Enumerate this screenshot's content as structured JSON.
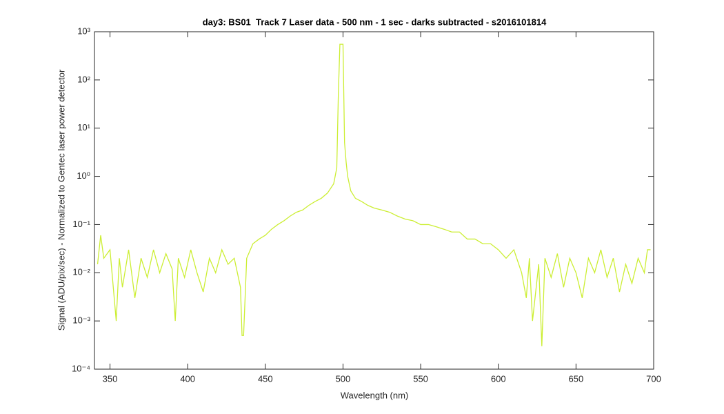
{
  "chart_data": {
    "type": "line",
    "title": "day3: BS01  Track 7 Laser data - 500 nm - 1 sec - darks subtracted - s2016101814",
    "x_label": "Wavelength (nm)",
    "y_label": "Signal (ADU/pix/sec) - Normalized to Gentec laser power detector",
    "y_scale": "log",
    "xlim": [
      340,
      700
    ],
    "ylim": [
      0.0001,
      1000
    ],
    "xticks": [
      350,
      400,
      450,
      500,
      550,
      600,
      650,
      700
    ],
    "yticks": [
      {
        "value": 0.0001,
        "label": "10⁻⁴"
      },
      {
        "value": 0.001,
        "label": "10⁻³"
      },
      {
        "value": 0.01,
        "label": "10⁻²"
      },
      {
        "value": 0.1,
        "label": "10⁻¹"
      },
      {
        "value": 1,
        "label": "10⁰"
      },
      {
        "value": 10,
        "label": "10¹"
      },
      {
        "value": 100,
        "label": "10²"
      },
      {
        "value": 1000,
        "label": "10³"
      }
    ],
    "series": [
      {
        "color": "#ccee33",
        "x": [
          342,
          344,
          346,
          350,
          354,
          356,
          358,
          362,
          366,
          370,
          374,
          378,
          382,
          386,
          390,
          392,
          394,
          398,
          402,
          406,
          410,
          414,
          418,
          422,
          426,
          430,
          434,
          435,
          436,
          438,
          442,
          446,
          450,
          454,
          458,
          462,
          466,
          470,
          474,
          478,
          482,
          486,
          490,
          494,
          496,
          497,
          498,
          499,
          500,
          501,
          502,
          503,
          505,
          508,
          512,
          516,
          520,
          525,
          530,
          535,
          540,
          545,
          550,
          555,
          560,
          565,
          570,
          575,
          580,
          585,
          590,
          595,
          600,
          605,
          610,
          615,
          618,
          620,
          622,
          626,
          628,
          630,
          634,
          638,
          642,
          646,
          650,
          654,
          658,
          662,
          666,
          670,
          674,
          678,
          682,
          686,
          690,
          694,
          696,
          698
        ],
        "values": [
          0.015,
          0.06,
          0.02,
          0.03,
          0.001,
          0.02,
          0.005,
          0.03,
          0.003,
          0.02,
          0.008,
          0.03,
          0.01,
          0.025,
          0.012,
          0.001,
          0.02,
          0.008,
          0.03,
          0.01,
          0.004,
          0.02,
          0.01,
          0.03,
          0.015,
          0.02,
          0.005,
          0.0005,
          0.0005,
          0.02,
          0.04,
          0.05,
          0.06,
          0.08,
          0.1,
          0.12,
          0.15,
          0.18,
          0.2,
          0.25,
          0.3,
          0.35,
          0.45,
          0.7,
          1.5,
          50,
          550,
          550,
          550,
          5,
          2,
          1,
          0.5,
          0.35,
          0.3,
          0.25,
          0.22,
          0.2,
          0.18,
          0.15,
          0.13,
          0.12,
          0.1,
          0.1,
          0.09,
          0.08,
          0.07,
          0.07,
          0.05,
          0.05,
          0.04,
          0.04,
          0.03,
          0.02,
          0.03,
          0.01,
          0.003,
          0.02,
          0.001,
          0.015,
          0.0003,
          0.02,
          0.008,
          0.025,
          0.005,
          0.02,
          0.01,
          0.003,
          0.02,
          0.01,
          0.03,
          0.008,
          0.02,
          0.004,
          0.015,
          0.006,
          0.02,
          0.01,
          0.03,
          0.03
        ]
      }
    ]
  }
}
